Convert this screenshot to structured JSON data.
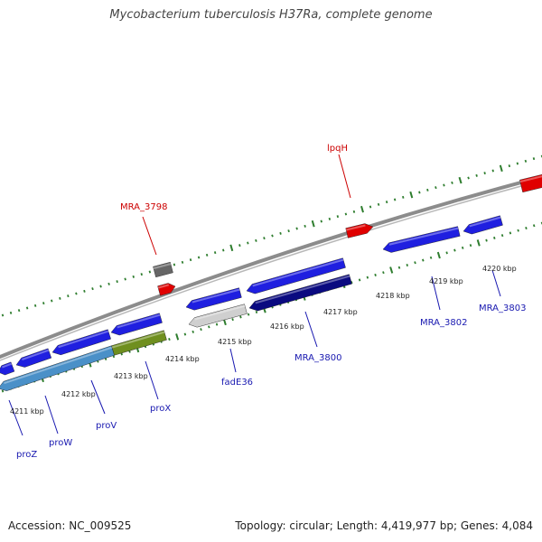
{
  "title": "Mycobacterium tuberculosis H37Ra, complete genome",
  "footer": {
    "accession": "Accession: NC_009525",
    "topology": "Topology: circular; Length: 4,419,977 bp; Genes: 4,084"
  },
  "colors": {
    "backbone": "#8c8c8c",
    "tick": "#2e7d2e",
    "gene_blue": "#1f1fe0",
    "gene_navy": "#0a0a80",
    "gene_steel": "#4a90c8",
    "gene_olive": "#6f8f1f",
    "gene_silver": "#cfcfcf",
    "gene_gray": "#666666",
    "gene_red": "#e00000",
    "label_blue": "#1818b0",
    "label_red": "#cc0000"
  },
  "kbp_labels": [
    "4211 kbp",
    "4212 kbp",
    "4213 kbp",
    "4214 kbp",
    "4215 kbp",
    "4216 kbp",
    "4217 kbp",
    "4218 kbp",
    "4219 kbp",
    "4220 kbp"
  ],
  "gene_labels": [
    {
      "text": "proZ",
      "strand": "minus"
    },
    {
      "text": "proW",
      "strand": "minus"
    },
    {
      "text": "proV",
      "strand": "minus"
    },
    {
      "text": "proX",
      "strand": "minus"
    },
    {
      "text": "fadE36",
      "strand": "minus"
    },
    {
      "text": "MRA_3800",
      "strand": "minus"
    },
    {
      "text": "MRA_3802",
      "strand": "minus"
    },
    {
      "text": "MRA_3803",
      "strand": "minus"
    },
    {
      "text": "MRA_3798",
      "strand": "plus"
    },
    {
      "text": "lpqH",
      "strand": "plus"
    }
  ]
}
